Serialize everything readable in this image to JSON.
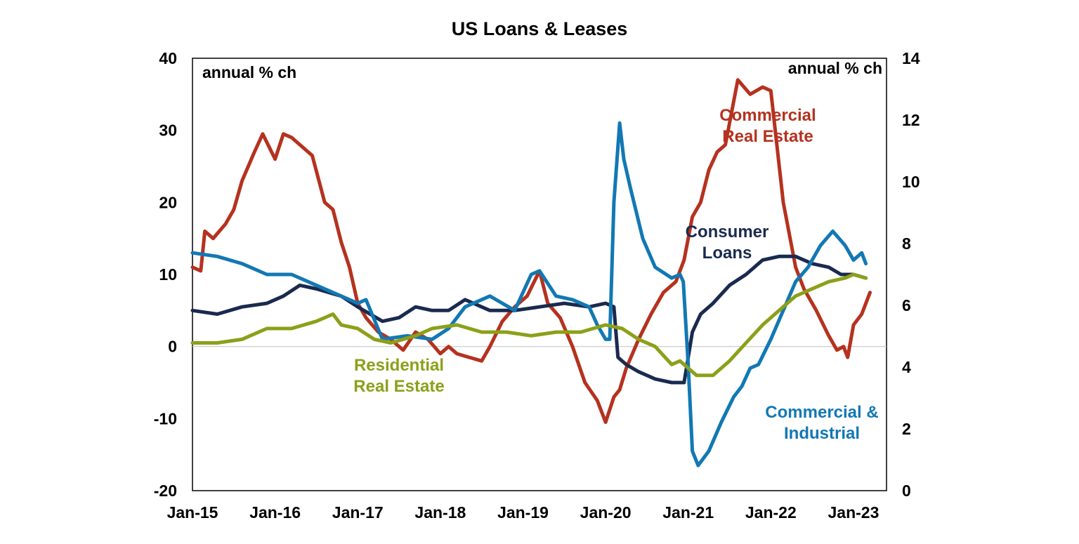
{
  "chart_data": {
    "type": "line",
    "title": "US Loans & Leases",
    "left_axis": {
      "unit_label": "annual % ch",
      "range": [
        -20,
        40
      ],
      "ticks": [
        "-20",
        "-10",
        "0",
        "10",
        "20",
        "30",
        "40"
      ]
    },
    "right_axis": {
      "unit_label": "annual % ch",
      "range": [
        0,
        14
      ],
      "ticks": [
        "0",
        "2",
        "4",
        "6",
        "8",
        "10",
        "12",
        "14"
      ]
    },
    "x_axis": {
      "range": [
        2015.0,
        2023.4
      ],
      "ticks": [
        "Jan-15",
        "Jan-16",
        "Jan-17",
        "Jan-18",
        "Jan-19",
        "Jan-20",
        "Jan-21",
        "Jan-22",
        "Jan-23"
      ]
    },
    "zero_line": true,
    "grid": false,
    "series": [
      {
        "name": "Commercial Real Estate",
        "label_lines": [
          "Commercial",
          "Real Estate"
        ],
        "color": "#b5321f",
        "axis": "left",
        "x": [
          2015.0,
          2015.1,
          2015.15,
          2015.25,
          2015.4,
          2015.5,
          2015.6,
          2015.75,
          2015.85,
          2016.0,
          2016.1,
          2016.2,
          2016.3,
          2016.45,
          2016.6,
          2016.7,
          2016.8,
          2016.9,
          2017.0,
          2017.1,
          2017.25,
          2017.4,
          2017.55,
          2017.7,
          2017.85,
          2018.0,
          2018.1,
          2018.2,
          2018.35,
          2018.5,
          2018.6,
          2018.75,
          2018.9,
          2019.05,
          2019.2,
          2019.3,
          2019.45,
          2019.6,
          2019.75,
          2019.9,
          2020.0,
          2020.1,
          2020.17,
          2020.25,
          2020.4,
          2020.55,
          2020.7,
          2020.85,
          2020.95,
          2021.05,
          2021.15,
          2021.25,
          2021.35,
          2021.45,
          2021.6,
          2021.75,
          2021.9,
          2022.0,
          2022.15,
          2022.3,
          2022.4,
          2022.55,
          2022.7,
          2022.8,
          2022.88,
          2022.93,
          2023.0,
          2023.1,
          2023.2
        ],
        "values": [
          11,
          10.5,
          16,
          15,
          17,
          19,
          23,
          27,
          29.5,
          26,
          29.5,
          29,
          28,
          26.5,
          20,
          19,
          14.5,
          11,
          6,
          4,
          2,
          1,
          -0.5,
          2,
          1,
          -1,
          0,
          -1,
          -1.5,
          -2,
          0,
          3.5,
          5.5,
          7,
          10.5,
          6,
          4,
          0,
          -5,
          -7.5,
          -10.5,
          -7,
          -6,
          -3,
          1,
          4.5,
          7.5,
          9,
          12,
          18,
          20,
          24.5,
          27,
          28,
          37,
          35,
          36,
          35.5,
          20,
          11,
          8,
          5,
          1.5,
          -0.5,
          0,
          -1.5,
          3,
          4.5,
          7.5
        ]
      },
      {
        "name": "Consumer Loans",
        "label_lines": [
          "Consumer",
          "Loans"
        ],
        "color": "#1a2a4f",
        "axis": "left",
        "x": [
          2015.0,
          2015.3,
          2015.6,
          2015.9,
          2016.1,
          2016.3,
          2016.5,
          2016.8,
          2017.0,
          2017.3,
          2017.5,
          2017.7,
          2017.9,
          2018.1,
          2018.3,
          2018.6,
          2018.9,
          2019.2,
          2019.5,
          2019.8,
          2020.0,
          2020.1,
          2020.15,
          2020.25,
          2020.4,
          2020.6,
          2020.8,
          2020.95,
          2021.05,
          2021.15,
          2021.3,
          2021.5,
          2021.7,
          2021.9,
          2022.1,
          2022.3,
          2022.5,
          2022.7,
          2022.85,
          2023.0,
          2023.15
        ],
        "values": [
          5,
          4.5,
          5.5,
          6,
          7,
          8.5,
          8,
          7,
          5.5,
          3.5,
          4,
          5.5,
          5,
          5,
          6.5,
          5,
          5,
          5.5,
          6,
          5.5,
          6,
          5.5,
          -1.5,
          -2.5,
          -3.5,
          -4.5,
          -5,
          -5,
          2,
          4.5,
          6,
          8.5,
          10,
          12,
          12.5,
          12.5,
          11.5,
          11,
          10,
          10,
          9.5
        ]
      },
      {
        "name": "Commercial & Industrial",
        "label_lines": [
          "Commercial &",
          "Industrial"
        ],
        "color": "#1278b4",
        "axis": "left",
        "x": [
          2015.0,
          2015.3,
          2015.6,
          2015.9,
          2016.2,
          2016.5,
          2016.8,
          2017.0,
          2017.1,
          2017.3,
          2017.6,
          2017.9,
          2018.1,
          2018.3,
          2018.6,
          2018.9,
          2019.1,
          2019.2,
          2019.4,
          2019.6,
          2019.8,
          2019.9,
          2020.0,
          2020.05,
          2020.1,
          2020.17,
          2020.22,
          2020.3,
          2020.45,
          2020.6,
          2020.8,
          2020.9,
          2020.94,
          2021.0,
          2021.05,
          2021.12,
          2021.25,
          2021.4,
          2021.55,
          2021.65,
          2021.75,
          2021.85,
          2022.0,
          2022.15,
          2022.3,
          2022.45,
          2022.6,
          2022.75,
          2022.9,
          2023.0,
          2023.1,
          2023.15
        ],
        "values": [
          13,
          12.5,
          11.5,
          10,
          10,
          8.5,
          7,
          6,
          6.5,
          1,
          1.5,
          1,
          2.5,
          5.5,
          7,
          5,
          10,
          10.5,
          7,
          6.5,
          5.5,
          3,
          1,
          1,
          20,
          31,
          26,
          22,
          15,
          11,
          9.5,
          10,
          9,
          -2.5,
          -14.5,
          -16.5,
          -14.5,
          -10.5,
          -7,
          -5.5,
          -3,
          -2.5,
          1,
          5,
          9,
          11,
          14,
          16,
          14,
          12,
          13,
          11.5
        ]
      },
      {
        "name": "Residential Real Estate",
        "label_lines": [
          "Residential",
          "Real Estate"
        ],
        "color": "#8ca019",
        "axis": "left",
        "x": [
          2015.0,
          2015.3,
          2015.6,
          2015.9,
          2016.2,
          2016.5,
          2016.7,
          2016.8,
          2017.0,
          2017.2,
          2017.4,
          2017.7,
          2017.9,
          2018.2,
          2018.5,
          2018.8,
          2019.1,
          2019.4,
          2019.7,
          2020.0,
          2020.2,
          2020.4,
          2020.6,
          2020.8,
          2020.9,
          2021.0,
          2021.1,
          2021.3,
          2021.5,
          2021.7,
          2021.9,
          2022.1,
          2022.3,
          2022.5,
          2022.7,
          2022.9,
          2023.0,
          2023.15
        ],
        "values": [
          0.5,
          0.5,
          1,
          2.5,
          2.5,
          3.5,
          4.5,
          3,
          2.5,
          1,
          0.5,
          1.5,
          2.5,
          3,
          2,
          2,
          1.5,
          2,
          2,
          3,
          2.5,
          1,
          0,
          -2.5,
          -2,
          -3,
          -4,
          -4,
          -2,
          0.5,
          3,
          5,
          7,
          8,
          9,
          9.5,
          10,
          9.5
        ]
      }
    ]
  }
}
